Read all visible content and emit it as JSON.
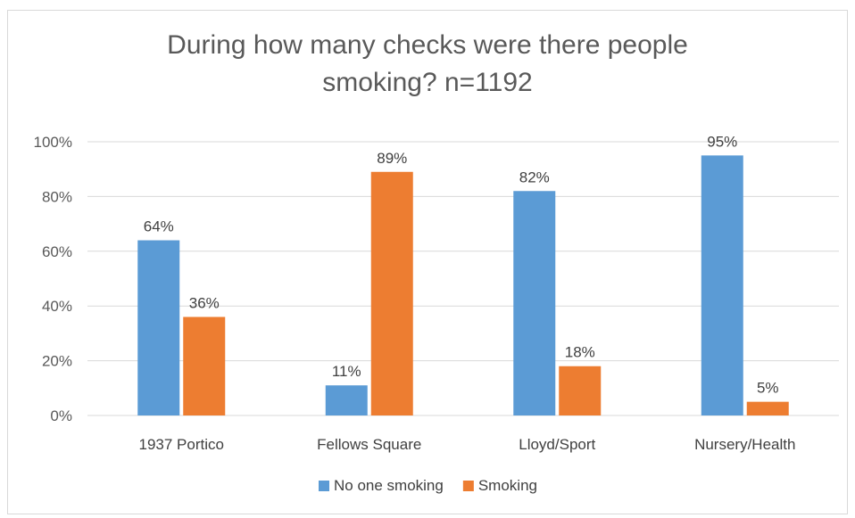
{
  "chart_data": {
    "type": "bar",
    "title_lines": [
      "During how many checks were there people",
      "smoking? n=1192"
    ],
    "categories": [
      "1937 Portico",
      "Fellows Square",
      "Lloyd/Sport",
      "Nursery/Health"
    ],
    "series": [
      {
        "name": "No one smoking",
        "color": "#5b9bd5",
        "values": [
          64,
          11,
          82,
          95
        ],
        "labels": [
          "64%",
          "11%",
          "82%",
          "95%"
        ]
      },
      {
        "name": "Smoking",
        "color": "#ed7d31",
        "values": [
          36,
          89,
          18,
          5
        ],
        "labels": [
          "36%",
          "89%",
          "18%",
          "5%"
        ]
      }
    ],
    "ylim": [
      0,
      100
    ],
    "yticks": [
      0,
      20,
      40,
      60,
      80,
      100
    ],
    "ytick_labels": [
      "0%",
      "20%",
      "40%",
      "60%",
      "80%",
      "100%"
    ],
    "grid": true,
    "legend_position": "bottom"
  }
}
